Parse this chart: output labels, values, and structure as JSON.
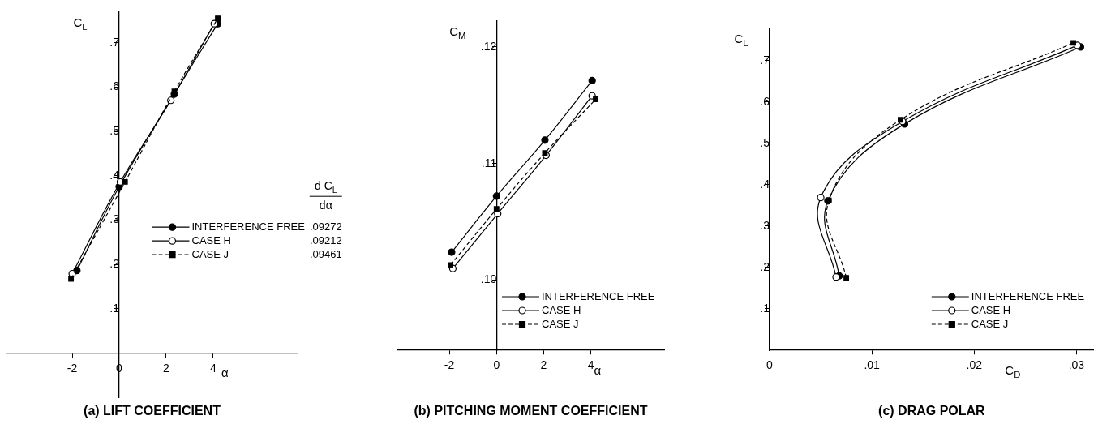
{
  "chart_data": [
    {
      "type": "line",
      "title": "(a) LIFT COEFFICIENT",
      "xlabel": "α",
      "ylabel": "C$_{L}$",
      "legend": "right",
      "xlim": [
        -4.8,
        7.6
      ],
      "ylim": [
        -0.1,
        0.77
      ],
      "xticks": [
        -2,
        0,
        2,
        4
      ],
      "yticks": [
        {
          "value": 0.1,
          "label": ".1"
        },
        {
          "value": 0.2,
          "label": ".2"
        },
        {
          "value": 0.3,
          "label": ".3"
        },
        {
          "value": 0.4,
          "label": ".4"
        },
        {
          "value": 0.5,
          "label": ".5"
        },
        {
          "value": 0.6,
          "label": ".6"
        },
        {
          "value": 0.7,
          "label": ".7"
        }
      ],
      "annotations": [
        "d C$_{L}$",
        "dα",
        ".09272",
        ".09212",
        ".09461"
      ],
      "series": [
        {
          "name": "INTERFERENCE FREE",
          "color": "#000000",
          "marker": "circle",
          "line_style": "solid",
          "x": [
            -1.8,
            0.0,
            2.35,
            4.2
          ],
          "values": [
            0.186,
            0.375,
            0.584,
            0.743
          ]
        },
        {
          "name": "CASE H",
          "color": "#000000",
          "colors": [
            "#ffffff",
            "#ffffff",
            "#ffffff",
            "#ffffff"
          ],
          "marker": "circle",
          "line_style": "solid",
          "x": [
            -2.0,
            0.05,
            2.2,
            4.05
          ],
          "values": [
            0.179,
            0.386,
            0.57,
            0.743
          ]
        },
        {
          "name": "CASE J",
          "color": "#000000",
          "marker": "square",
          "line_style": "dashed",
          "x": [
            -2.05,
            0.25,
            2.35,
            4.2
          ],
          "values": [
            0.167,
            0.386,
            0.59,
            0.755
          ]
        }
      ]
    },
    {
      "type": "line",
      "title": "(b) PITCHING MOMENT COEFFICIENT",
      "xlabel": "α",
      "ylabel": "C$_{M}$",
      "legend": "bottom right",
      "xlim": [
        -4.2,
        7.1
      ],
      "ylim": [
        0.094,
        0.1222
      ],
      "xticks": [
        -2,
        0,
        2,
        4
      ],
      "yticks": [
        {
          "value": 0.1,
          "label": ".10"
        },
        {
          "value": 0.11,
          "label": ".11"
        },
        {
          "value": 0.12,
          "label": ".12"
        }
      ],
      "series": [
        {
          "name": "INTERFERENCE FREE",
          "color": "#000000",
          "marker": "circle",
          "line_style": "solid",
          "x": [
            -1.9,
            0.0,
            2.05,
            4.05
          ],
          "values": [
            0.1024,
            0.1072,
            0.112,
            0.1171
          ]
        },
        {
          "name": "CASE H",
          "color": "#000000",
          "colors": [
            "#ffffff",
            "#ffffff",
            "#ffffff",
            "#ffffff"
          ],
          "marker": "circle",
          "line_style": "solid",
          "x": [
            -1.85,
            0.05,
            2.1,
            4.05
          ],
          "values": [
            0.101,
            0.1057,
            0.1107,
            0.1158
          ]
        },
        {
          "name": "CASE J",
          "color": "#000000",
          "marker": "square",
          "line_style": "dashed",
          "x": [
            -1.95,
            0.0,
            2.05,
            4.2
          ],
          "values": [
            0.1013,
            0.1061,
            0.1109,
            0.1155
          ]
        }
      ]
    },
    {
      "type": "line",
      "title": "(c) DRAG POLAR",
      "xlabel": "C$_{D}$",
      "ylabel": "C$_{L}$",
      "legend": "bottom right",
      "xlim": [
        0,
        0.0317
      ],
      "ylim": [
        0,
        0.778
      ],
      "xticks": [
        0,
        {
          "value": 0.01,
          "label": ".01"
        },
        {
          "value": 0.02,
          "label": ".02"
        },
        {
          "value": 0.03,
          "label": ".03"
        }
      ],
      "yticks": [
        {
          "value": 0.1,
          "label": ".1"
        },
        {
          "value": 0.2,
          "label": ".2"
        },
        {
          "value": 0.3,
          "label": ".3"
        },
        {
          "value": 0.4,
          "label": ".4"
        },
        {
          "value": 0.5,
          "label": ".5"
        },
        {
          "value": 0.6,
          "label": ".6"
        },
        {
          "value": 0.7,
          "label": ".7"
        }
      ],
      "series": [
        {
          "name": "INTERFERENCE FREE",
          "color": "#000000",
          "marker": "circle",
          "line_style": "solid",
          "x": [
            0.0068,
            0.0057,
            0.0132,
            0.0304
          ],
          "values": [
            0.18,
            0.361,
            0.547,
            0.733
          ]
        },
        {
          "name": "CASE H",
          "color": "#000000",
          "colors": [
            "#ffffff",
            "#ffffff",
            "#ffffff",
            "#ffffff"
          ],
          "marker": "circle",
          "line_style": "solid",
          "x": [
            0.0065,
            0.005,
            0.013,
            0.0301
          ],
          "values": [
            0.177,
            0.369,
            0.553,
            0.737
          ]
        },
        {
          "name": "CASE J",
          "color": "#000000",
          "marker": "square",
          "line_style": "dashed",
          "x": [
            0.0075,
            0.0058,
            0.0128,
            0.0297
          ],
          "values": [
            0.175,
            0.362,
            0.557,
            0.743
          ]
        }
      ]
    }
  ]
}
